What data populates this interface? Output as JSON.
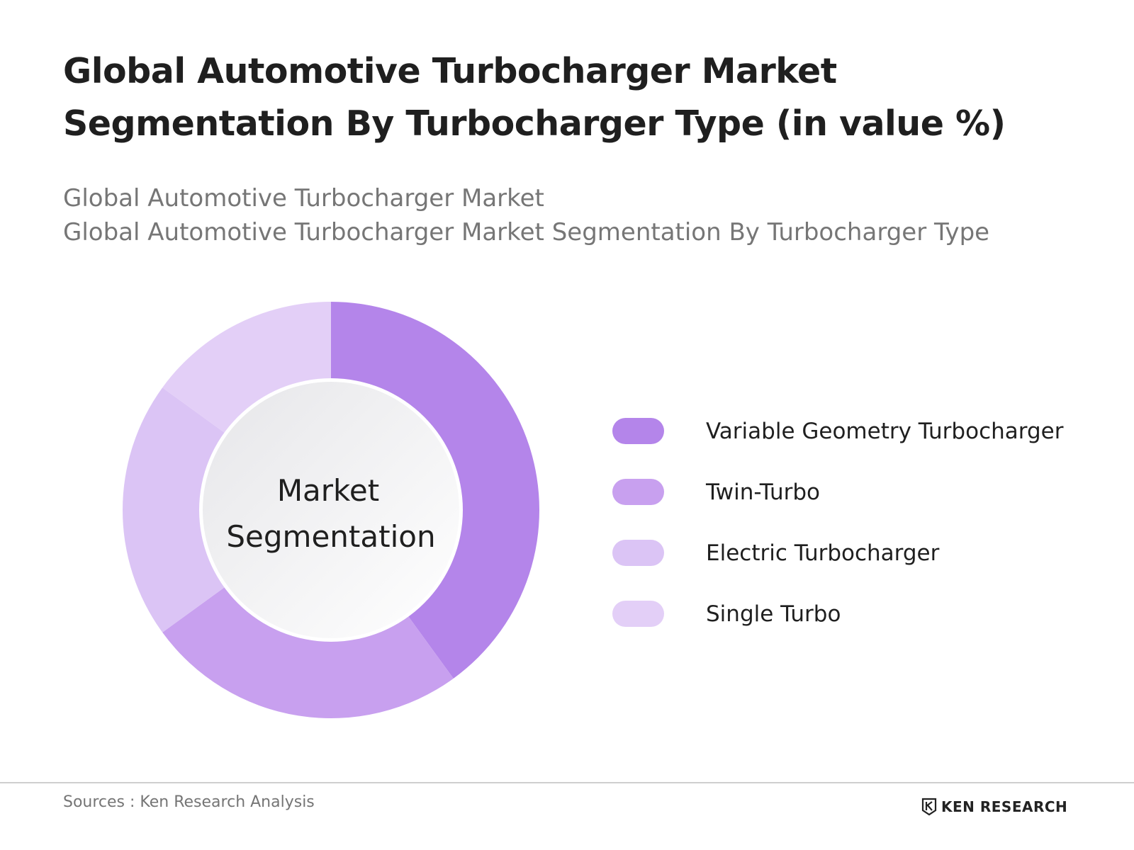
{
  "title": "Global Automotive Turbocharger Market Segmentation By Turbocharger Type (in value %)",
  "subtitle_line1": "Global Automotive Turbocharger Market",
  "subtitle_line2": "Global Automotive Turbocharger Market Segmentation By Turbocharger Type",
  "center_label_line1": "Market",
  "center_label_line2": "Segmentation",
  "source": "Sources : Ken Research Analysis",
  "brand": "KEN RESEARCH",
  "chart_data": {
    "type": "pie",
    "title": "Global Automotive Turbocharger Market Segmentation By Turbocharger Type (in value %)",
    "categories": [
      "Variable Geometry Turbocharger",
      "Twin-Turbo",
      "Electric Turbocharger",
      "Single Turbo"
    ],
    "values": [
      40,
      25,
      20,
      15
    ],
    "colors": [
      "#b485ea",
      "#c8a0ef",
      "#dbc4f5",
      "#e3cff7"
    ],
    "legend_position": "right"
  }
}
